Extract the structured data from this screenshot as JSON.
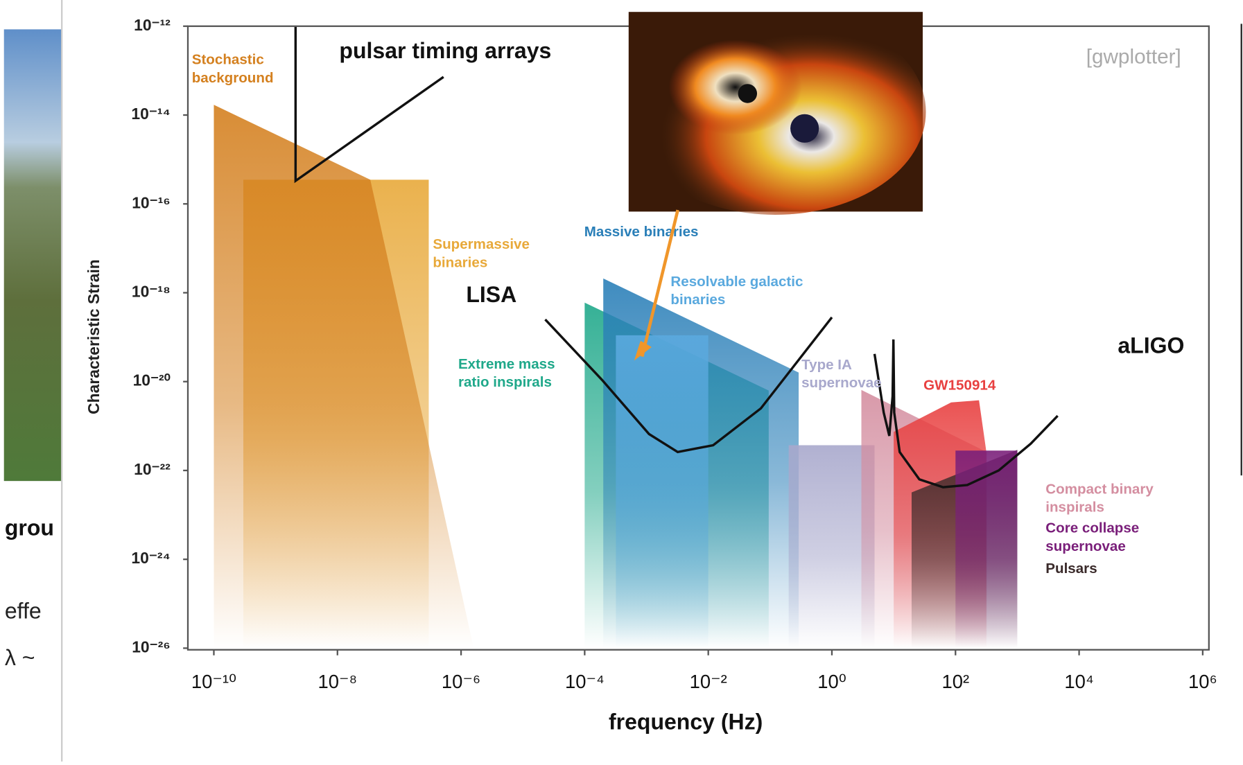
{
  "chart_data": {
    "type": "area",
    "x_label": "frequency (Hz)",
    "y_label": "Characteristic Strain",
    "source": "[gwplotter]",
    "log_scale": true,
    "xlim": [
      3.8e-11,
      1260000.0
    ],
    "ylim": [
      9.2e-27,
      1e-12
    ],
    "xticks": [
      {
        "value": 1e-10,
        "label": "10⁻¹⁰"
      },
      {
        "value": 1e-08,
        "label": "10⁻⁸"
      },
      {
        "value": 1e-06,
        "label": "10⁻⁶"
      },
      {
        "value": 0.0001,
        "label": "10⁻⁴"
      },
      {
        "value": 0.01,
        "label": "10⁻²"
      },
      {
        "value": 1,
        "label": "10⁰"
      },
      {
        "value": 100,
        "label": "10²"
      },
      {
        "value": 10000,
        "label": "10⁴"
      },
      {
        "value": 1000000,
        "label": "10⁶"
      }
    ],
    "yticks": [
      {
        "value": 1e-12,
        "label": "10⁻¹²"
      },
      {
        "value": 1e-14,
        "label": "10⁻¹⁴"
      },
      {
        "value": 1e-16,
        "label": "10⁻¹⁶"
      },
      {
        "value": 1e-18,
        "label": "10⁻¹⁸"
      },
      {
        "value": 1e-20,
        "label": "10⁻²⁰"
      },
      {
        "value": 1e-22,
        "label": "10⁻²²"
      },
      {
        "value": 1e-24,
        "label": "10⁻²⁴"
      },
      {
        "value": 1e-26,
        "label": "10⁻²⁶"
      }
    ],
    "series": [
      {
        "name": "Supermassive binaries",
        "color": "#e8a93a",
        "x": [
          3e-10,
          3e-07,
          3e-07,
          3e-10
        ],
        "values": [
          3.5e-16,
          3.5e-16,
          1e-26,
          1e-26
        ]
      },
      {
        "name": "Stochastic background",
        "color": "#d4801f",
        "x": [
          1e-10,
          3.4e-08,
          1.6e-06,
          1e-10
        ],
        "values": [
          1.7e-14,
          3.5e-16,
          1e-26,
          1e-26
        ]
      },
      {
        "name": "Extreme mass ratio inspirals",
        "color": "#1fa88a",
        "x": [
          0.0001,
          0.0001,
          0.095,
          0.095
        ],
        "values": [
          1e-26,
          6e-19,
          6.3e-21,
          1e-26
        ]
      },
      {
        "name": "Massive binaries",
        "color": "#2a7fb8",
        "x": [
          0.0002,
          0.0002,
          0.29,
          0.29
        ],
        "values": [
          1e-26,
          2.1e-18,
          1.6e-20,
          1e-26
        ]
      },
      {
        "name": "Resolvable galactic binaries",
        "color": "#5aa9de",
        "x": [
          0.00032,
          0.00032,
          0.01,
          0.01
        ],
        "values": [
          1e-26,
          1.1e-19,
          1.1e-19,
          1e-26
        ]
      },
      {
        "name": "Type IA supernovae",
        "color": "#a8a8cc",
        "x": [
          0.2,
          0.2,
          4.9,
          4.9
        ],
        "values": [
          1e-26,
          3.7e-22,
          3.7e-22,
          1e-26
        ]
      },
      {
        "name": "Compact binary inspirals",
        "color": "#d48ea0",
        "x": [
          3,
          3,
          320,
          320
        ],
        "values": [
          1e-26,
          6.5e-21,
          2.6e-22,
          1e-26
        ]
      },
      {
        "name": "GW150914",
        "color": "#e84040",
        "x": [
          10,
          10,
          85,
          240,
          316,
          316
        ],
        "values": [
          1e-26,
          7.4e-22,
          3.4e-21,
          3.8e-21,
          2.6e-22,
          1e-26
        ]
      },
      {
        "name": "Pulsars",
        "color": "#3a2a2a",
        "x": [
          19.5,
          19.5,
          1000,
          1000
        ],
        "values": [
          1e-26,
          3.2e-23,
          2.9e-22,
          1e-26
        ]
      },
      {
        "name": "Core collapse supernovae",
        "color": "#7a1f7a",
        "x": [
          100,
          100,
          1000,
          1000
        ],
        "values": [
          1e-26,
          2.8e-22,
          2.8e-22,
          1e-26
        ]
      }
    ],
    "curves": [
      {
        "name": "pulsar timing arrays",
        "color": "#111111",
        "x": [
          2.1e-09,
          2.1e-09,
          5.2e-07
        ],
        "values": [
          1e-12,
          3.3e-16,
          7.2e-14
        ]
      },
      {
        "name": "LISA",
        "color": "#111111",
        "x": [
          2.3e-05,
          0.00019,
          0.0011,
          0.0032,
          0.012,
          0.071,
          1.0
        ],
        "values": [
          2.5e-19,
          1.1e-20,
          6.6e-22,
          2.6e-22,
          3.7e-22,
          2.5e-21,
          2.8e-19
        ]
      },
      {
        "name": "aLIGO",
        "color": "#111111",
        "x": [
          4.9,
          6.9,
          8.5,
          9.6,
          9.9,
          10.2,
          12.5,
          26,
          63,
          155,
          500,
          1650,
          4500
        ],
        "values": [
          4.2e-20,
          2e-21,
          6e-22,
          4.7e-21,
          8.9e-20,
          2e-21,
          2.6e-22,
          6.3e-23,
          4.2e-23,
          4.7e-23,
          1e-22,
          4e-22,
          1.7e-21
        ]
      }
    ]
  },
  "background_text": [
    "grou",
    "effe",
    "λ ~"
  ]
}
